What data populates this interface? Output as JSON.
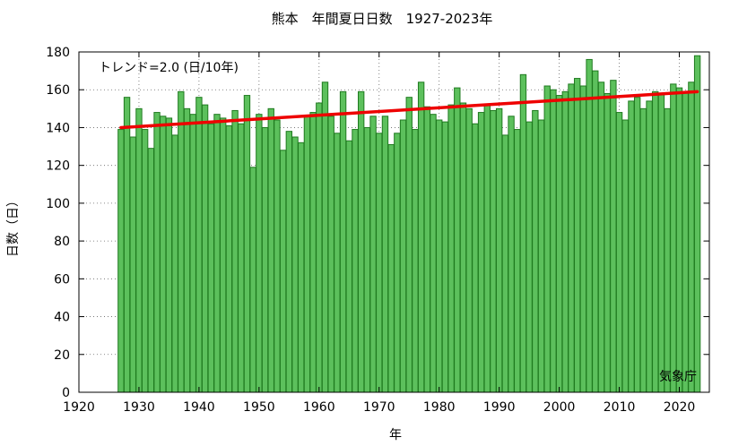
{
  "chart_data": {
    "type": "bar",
    "title": "熊本　年間夏日日数　1927-2023年",
    "xlabel": "年",
    "ylabel": "日数（日）",
    "trend_label": "トレンド=2.0 (日/10年)",
    "credit": "気象庁",
    "xlim": [
      1920,
      2025
    ],
    "ylim": [
      0,
      180
    ],
    "x_ticks": [
      1920,
      1930,
      1940,
      1950,
      1960,
      1970,
      1980,
      1990,
      2000,
      2010,
      2020
    ],
    "y_ticks": [
      0,
      20,
      40,
      60,
      80,
      100,
      120,
      140,
      160,
      180
    ],
    "grid": true,
    "bar_color": "#5cc05c",
    "bar_edge_color": "#1f7a1f",
    "trend_color": "#ee0000",
    "years": [
      1927,
      1928,
      1929,
      1930,
      1931,
      1932,
      1933,
      1934,
      1935,
      1936,
      1937,
      1938,
      1939,
      1940,
      1941,
      1942,
      1943,
      1944,
      1945,
      1946,
      1947,
      1948,
      1949,
      1950,
      1951,
      1952,
      1953,
      1954,
      1955,
      1956,
      1957,
      1958,
      1959,
      1960,
      1961,
      1962,
      1963,
      1964,
      1965,
      1966,
      1967,
      1968,
      1969,
      1970,
      1971,
      1972,
      1973,
      1974,
      1975,
      1976,
      1977,
      1978,
      1979,
      1980,
      1981,
      1982,
      1983,
      1984,
      1985,
      1986,
      1987,
      1988,
      1989,
      1990,
      1991,
      1992,
      1993,
      1994,
      1995,
      1996,
      1997,
      1998,
      1999,
      2000,
      2001,
      2002,
      2003,
      2004,
      2005,
      2006,
      2007,
      2008,
      2009,
      2010,
      2011,
      2012,
      2013,
      2014,
      2015,
      2016,
      2017,
      2018,
      2019,
      2020,
      2021,
      2022,
      2023
    ],
    "values": [
      139,
      156,
      135,
      150,
      139,
      129,
      148,
      146,
      145,
      136,
      159,
      150,
      147,
      156,
      152,
      142,
      147,
      145,
      141,
      149,
      142,
      157,
      119,
      147,
      140,
      150,
      144,
      128,
      138,
      135,
      132,
      146,
      148,
      153,
      164,
      146,
      137,
      159,
      133,
      139,
      159,
      140,
      146,
      137,
      146,
      131,
      137,
      144,
      156,
      139,
      164,
      151,
      147,
      144,
      143,
      152,
      161,
      153,
      150,
      142,
      148,
      152,
      149,
      150,
      136,
      146,
      139,
      168,
      143,
      149,
      144,
      162,
      160,
      157,
      159,
      163,
      166,
      162,
      176,
      170,
      164,
      158,
      165,
      148,
      144,
      154,
      156,
      150,
      154,
      159,
      158,
      150,
      163,
      161,
      159,
      164,
      178
    ],
    "trend": {
      "x": [
        1927,
        2023
      ],
      "y": [
        140,
        159
      ]
    }
  }
}
